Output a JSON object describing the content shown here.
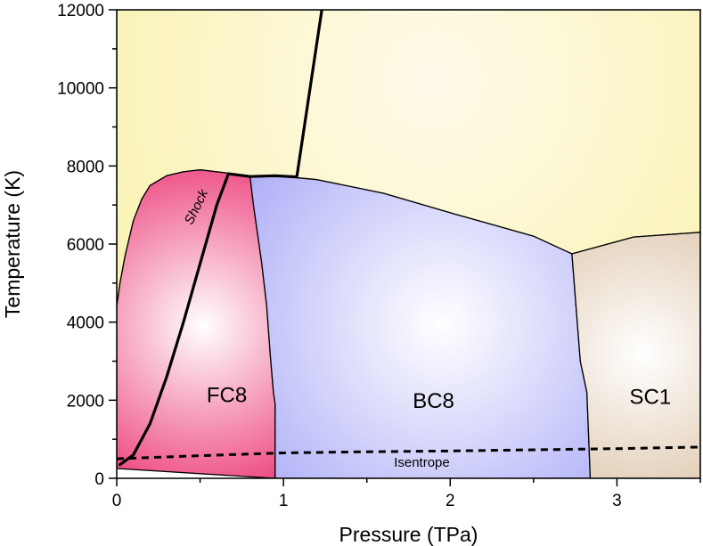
{
  "chart_data": {
    "type": "phase-diagram",
    "xlabel": "Pressure (TPa)",
    "ylabel": "Temperature (K)",
    "xlim": [
      0,
      3.5
    ],
    "ylim": [
      0,
      12000
    ],
    "x_ticks": [
      0,
      1,
      2,
      3
    ],
    "x_tick_labels": [
      "0",
      "1",
      "2",
      "3"
    ],
    "y_ticks": [
      0,
      2000,
      4000,
      6000,
      8000,
      10000,
      12000
    ],
    "y_tick_labels": [
      "0",
      "2000",
      "4000",
      "6000",
      "8000",
      "10000",
      "12000"
    ],
    "regions": [
      {
        "name": "liquid",
        "label": "",
        "color": "#f8f0a8",
        "center_color": "#fffbea",
        "boundary": [
          [
            0,
            12000
          ],
          [
            3.5,
            12000
          ],
          [
            3.5,
            6300
          ],
          [
            3.1,
            6180
          ],
          [
            2.73,
            5750
          ],
          [
            2.5,
            6200
          ],
          [
            2.0,
            6800
          ],
          [
            1.6,
            7300
          ],
          [
            1.2,
            7650
          ],
          [
            0.95,
            7750
          ],
          [
            0.8,
            7730
          ],
          [
            0.7,
            7800
          ],
          [
            0.5,
            7900
          ],
          [
            0.4,
            7850
          ],
          [
            0.3,
            7750
          ],
          [
            0.2,
            7500
          ],
          [
            0.15,
            7150
          ],
          [
            0.1,
            6600
          ],
          [
            0.05,
            5700
          ],
          [
            0.02,
            5000
          ],
          [
            0,
            4400
          ]
        ]
      },
      {
        "name": "FC8",
        "label": "FC8",
        "color": "#e81860",
        "center_color": "#ffffff",
        "boundary": [
          [
            0,
            250
          ],
          [
            0,
            4400
          ],
          [
            0.02,
            5000
          ],
          [
            0.05,
            5700
          ],
          [
            0.1,
            6600
          ],
          [
            0.15,
            7150
          ],
          [
            0.2,
            7500
          ],
          [
            0.3,
            7750
          ],
          [
            0.4,
            7850
          ],
          [
            0.5,
            7900
          ],
          [
            0.7,
            7800
          ],
          [
            0.8,
            7730
          ],
          [
            0.82,
            7000
          ],
          [
            0.87,
            5500
          ],
          [
            0.9,
            4400
          ],
          [
            0.92,
            3200
          ],
          [
            0.94,
            2200
          ],
          [
            0.95,
            1900
          ],
          [
            0.95,
            0
          ]
        ]
      },
      {
        "name": "BC8",
        "label": "BC8",
        "color": "#b0b0f8",
        "center_color": "#ffffff",
        "boundary": [
          [
            0.8,
            7730
          ],
          [
            0.95,
            7750
          ],
          [
            1.2,
            7650
          ],
          [
            1.6,
            7300
          ],
          [
            2.0,
            6800
          ],
          [
            2.5,
            6200
          ],
          [
            2.73,
            5750
          ],
          [
            2.78,
            3000
          ],
          [
            2.82,
            2200
          ],
          [
            2.84,
            0
          ],
          [
            0.95,
            0
          ],
          [
            0.95,
            1900
          ],
          [
            0.94,
            2200
          ],
          [
            0.92,
            3200
          ],
          [
            0.9,
            4400
          ],
          [
            0.87,
            5500
          ],
          [
            0.82,
            7000
          ]
        ]
      },
      {
        "name": "SC1",
        "label": "SC1",
        "color": "#dcc4a8",
        "center_color": "#ffffff",
        "boundary": [
          [
            2.73,
            5750
          ],
          [
            3.1,
            6180
          ],
          [
            3.5,
            6300
          ],
          [
            3.5,
            0
          ],
          [
            2.84,
            0
          ],
          [
            2.82,
            2200
          ],
          [
            2.78,
            3000
          ]
        ]
      }
    ],
    "curves": [
      {
        "name": "shock",
        "label": "Shock",
        "style": "solid-thick",
        "points": [
          [
            0.02,
            350
          ],
          [
            0.1,
            600
          ],
          [
            0.2,
            1400
          ],
          [
            0.3,
            2600
          ],
          [
            0.4,
            4000
          ],
          [
            0.5,
            5500
          ],
          [
            0.6,
            7000
          ],
          [
            0.67,
            7800
          ]
        ]
      },
      {
        "name": "melt-boundary",
        "label": "",
        "style": "solid-thick",
        "points": [
          [
            0.67,
            7800
          ],
          [
            0.8,
            7730
          ],
          [
            0.95,
            7750
          ],
          [
            1.08,
            7720
          ],
          [
            1.23,
            12000
          ]
        ]
      },
      {
        "name": "isentrope",
        "label": "Isentrope",
        "style": "dashed",
        "points": [
          [
            0,
            500
          ],
          [
            0.5,
            580
          ],
          [
            1.0,
            650
          ],
          [
            1.5,
            680
          ],
          [
            2.0,
            700
          ],
          [
            2.5,
            730
          ],
          [
            3.0,
            760
          ],
          [
            3.5,
            800
          ]
        ]
      }
    ],
    "region_label_positions": [
      {
        "label": "FC8",
        "x": 0.66,
        "y": 1950
      },
      {
        "label": "BC8",
        "x": 1.9,
        "y": 1800
      },
      {
        "label": "SC1",
        "x": 3.2,
        "y": 1900
      }
    ],
    "annotations": [
      {
        "text": "Shock",
        "x": 0.5,
        "y": 6900,
        "rotation_deg": -64
      },
      {
        "text": "Isentrope",
        "x": 1.83,
        "y": 300,
        "rotation_deg": 0
      }
    ]
  }
}
